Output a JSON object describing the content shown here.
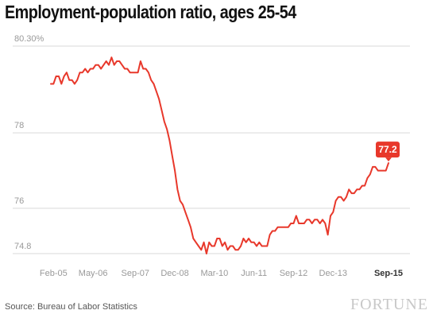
{
  "title": "Employment-population ratio, ages 25-54",
  "source": "Source: Bureau of Labor Statistics",
  "brand": "FORTUNE",
  "colors": {
    "line": "#e8382b",
    "grid": "#d9d9d9",
    "tick_text": "#999999",
    "last_tick_text": "#333333",
    "badge": "#e8382b"
  },
  "chart_data": {
    "type": "line",
    "title": "Employment-population ratio, ages 25-54",
    "xlabel": "",
    "ylabel": "",
    "x_range": [
      "2005-01",
      "2015-09"
    ],
    "ylim": [
      74.8,
      80.3
    ],
    "grid": "horizontal",
    "y_ticks": [
      {
        "value": 80.3,
        "label": "80.30%"
      },
      {
        "value": 78,
        "label": "78"
      },
      {
        "value": 76,
        "label": "76"
      },
      {
        "value": 74.8,
        "label": "74.8"
      }
    ],
    "x_ticks": [
      {
        "x": "2005-02",
        "label": "Feb-05"
      },
      {
        "x": "2006-05",
        "label": "May-06"
      },
      {
        "x": "2007-09",
        "label": "Sep-07"
      },
      {
        "x": "2008-12",
        "label": "Dec-08"
      },
      {
        "x": "2010-03",
        "label": "Mar-10"
      },
      {
        "x": "2011-06",
        "label": "Jun-11"
      },
      {
        "x": "2012-09",
        "label": "Sep-12"
      },
      {
        "x": "2013-12",
        "label": "Dec-13"
      },
      {
        "x": "2015-09",
        "label": "Sep-15"
      }
    ],
    "series": [
      {
        "points": [
          [
            "2005-01",
            79.3
          ],
          [
            "2005-02",
            79.3
          ],
          [
            "2005-03",
            79.5
          ],
          [
            "2005-04",
            79.5
          ],
          [
            "2005-05",
            79.3
          ],
          [
            "2005-06",
            79.5
          ],
          [
            "2005-07",
            79.6
          ],
          [
            "2005-08",
            79.4
          ],
          [
            "2005-09",
            79.4
          ],
          [
            "2005-10",
            79.3
          ],
          [
            "2005-11",
            79.4
          ],
          [
            "2005-12",
            79.6
          ],
          [
            "2006-01",
            79.6
          ],
          [
            "2006-02",
            79.7
          ],
          [
            "2006-03",
            79.6
          ],
          [
            "2006-04",
            79.7
          ],
          [
            "2006-05",
            79.7
          ],
          [
            "2006-06",
            79.8
          ],
          [
            "2006-07",
            79.8
          ],
          [
            "2006-08",
            79.7
          ],
          [
            "2006-09",
            79.8
          ],
          [
            "2006-10",
            79.9
          ],
          [
            "2006-11",
            79.8
          ],
          [
            "2006-12",
            80.0
          ],
          [
            "2007-01",
            79.8
          ],
          [
            "2007-02",
            79.9
          ],
          [
            "2007-03",
            79.9
          ],
          [
            "2007-04",
            79.8
          ],
          [
            "2007-05",
            79.7
          ],
          [
            "2007-06",
            79.7
          ],
          [
            "2007-07",
            79.6
          ],
          [
            "2007-08",
            79.6
          ],
          [
            "2007-09",
            79.6
          ],
          [
            "2007-10",
            79.6
          ],
          [
            "2007-11",
            79.9
          ],
          [
            "2007-12",
            79.7
          ],
          [
            "2008-01",
            79.7
          ],
          [
            "2008-02",
            79.6
          ],
          [
            "2008-03",
            79.4
          ],
          [
            "2008-04",
            79.3
          ],
          [
            "2008-05",
            79.1
          ],
          [
            "2008-06",
            78.9
          ],
          [
            "2008-07",
            78.6
          ],
          [
            "2008-08",
            78.3
          ],
          [
            "2008-09",
            78.1
          ],
          [
            "2008-10",
            77.8
          ],
          [
            "2008-11",
            77.4
          ],
          [
            "2008-12",
            77.0
          ],
          [
            "2009-01",
            76.5
          ],
          [
            "2009-02",
            76.2
          ],
          [
            "2009-03",
            76.1
          ],
          [
            "2009-04",
            75.9
          ],
          [
            "2009-05",
            75.7
          ],
          [
            "2009-06",
            75.5
          ],
          [
            "2009-07",
            75.2
          ],
          [
            "2009-08",
            75.1
          ],
          [
            "2009-09",
            75.0
          ],
          [
            "2009-10",
            74.9
          ],
          [
            "2009-11",
            75.1
          ],
          [
            "2009-12",
            74.8
          ],
          [
            "2010-01",
            75.1
          ],
          [
            "2010-02",
            75.0
          ],
          [
            "2010-03",
            75.0
          ],
          [
            "2010-04",
            75.2
          ],
          [
            "2010-05",
            75.2
          ],
          [
            "2010-06",
            75.0
          ],
          [
            "2010-07",
            75.1
          ],
          [
            "2010-08",
            74.9
          ],
          [
            "2010-09",
            75.0
          ],
          [
            "2010-10",
            75.0
          ],
          [
            "2010-11",
            74.9
          ],
          [
            "2010-12",
            74.9
          ],
          [
            "2011-01",
            75.0
          ],
          [
            "2011-02",
            75.2
          ],
          [
            "2011-03",
            75.1
          ],
          [
            "2011-04",
            75.2
          ],
          [
            "2011-05",
            75.1
          ],
          [
            "2011-06",
            75.1
          ],
          [
            "2011-07",
            75.0
          ],
          [
            "2011-08",
            75.1
          ],
          [
            "2011-09",
            75.0
          ],
          [
            "2011-10",
            75.0
          ],
          [
            "2011-11",
            75.0
          ],
          [
            "2011-12",
            75.3
          ],
          [
            "2012-01",
            75.4
          ],
          [
            "2012-02",
            75.4
          ],
          [
            "2012-03",
            75.5
          ],
          [
            "2012-04",
            75.5
          ],
          [
            "2012-05",
            75.5
          ],
          [
            "2012-06",
            75.5
          ],
          [
            "2012-07",
            75.5
          ],
          [
            "2012-08",
            75.6
          ],
          [
            "2012-09",
            75.6
          ],
          [
            "2012-10",
            75.8
          ],
          [
            "2012-11",
            75.6
          ],
          [
            "2012-12",
            75.6
          ],
          [
            "2013-01",
            75.6
          ],
          [
            "2013-02",
            75.7
          ],
          [
            "2013-03",
            75.7
          ],
          [
            "2013-04",
            75.6
          ],
          [
            "2013-05",
            75.7
          ],
          [
            "2013-06",
            75.7
          ],
          [
            "2013-07",
            75.6
          ],
          [
            "2013-08",
            75.7
          ],
          [
            "2013-09",
            75.6
          ],
          [
            "2013-10",
            75.3
          ],
          [
            "2013-11",
            75.8
          ],
          [
            "2013-12",
            75.9
          ],
          [
            "2014-01",
            76.2
          ],
          [
            "2014-02",
            76.3
          ],
          [
            "2014-03",
            76.3
          ],
          [
            "2014-04",
            76.2
          ],
          [
            "2014-05",
            76.3
          ],
          [
            "2014-06",
            76.5
          ],
          [
            "2014-07",
            76.4
          ],
          [
            "2014-08",
            76.4
          ],
          [
            "2014-09",
            76.5
          ],
          [
            "2014-10",
            76.5
          ],
          [
            "2014-11",
            76.6
          ],
          [
            "2014-12",
            76.6
          ],
          [
            "2015-01",
            76.8
          ],
          [
            "2015-02",
            76.9
          ],
          [
            "2015-03",
            77.1
          ],
          [
            "2015-04",
            77.1
          ],
          [
            "2015-05",
            77.0
          ],
          [
            "2015-06",
            77.0
          ],
          [
            "2015-07",
            77.0
          ],
          [
            "2015-08",
            77.0
          ],
          [
            "2015-09",
            77.2
          ]
        ]
      }
    ],
    "annotations": [
      {
        "x": "2015-09",
        "y": 77.2,
        "label": "77.2"
      }
    ]
  }
}
